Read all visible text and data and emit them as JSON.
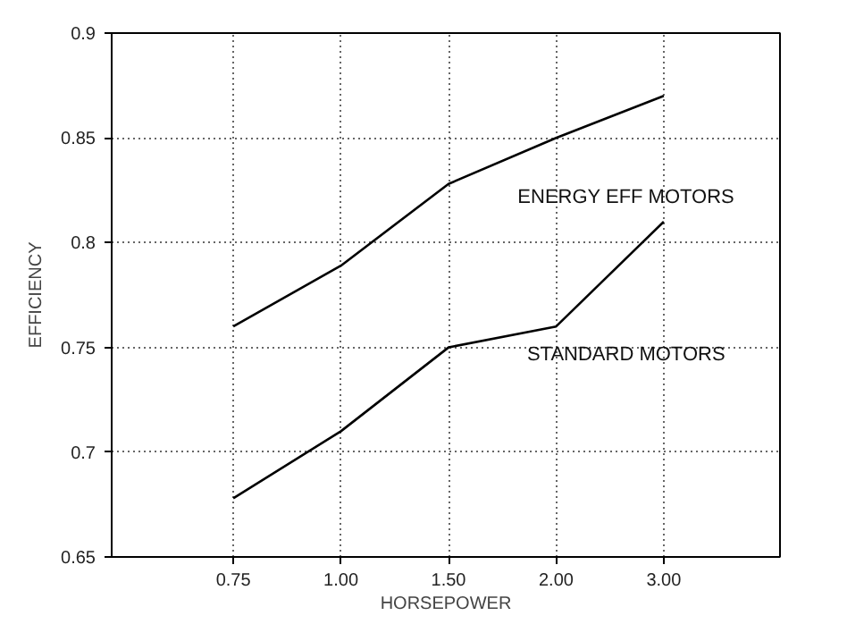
{
  "chart_data": {
    "type": "line",
    "xlabel": "HORSEPOWER",
    "ylabel": "EFFICIENCY",
    "categories": [
      "0.75",
      "1.00",
      "1.50",
      "2.00",
      "3.00"
    ],
    "series": [
      {
        "name": "ENERGY EFF MOTORS",
        "color": "#000000",
        "values": [
          0.76,
          0.789,
          0.828,
          0.85,
          0.87
        ]
      },
      {
        "name": "STANDARD MOTORS",
        "color": "#000000",
        "values": [
          0.678,
          0.71,
          0.75,
          0.76,
          0.81
        ]
      }
    ],
    "ylim": [
      0.65,
      0.9
    ],
    "yticks": [
      0.65,
      {
        "value": 0.7,
        "label": "0.7"
      },
      0.75,
      {
        "value": 0.8,
        "label": "0.8"
      },
      0.85,
      {
        "value": 0.9,
        "label": "0.9"
      }
    ],
    "grid": true,
    "legend": false,
    "marker": "none",
    "line_style": "solid"
  }
}
